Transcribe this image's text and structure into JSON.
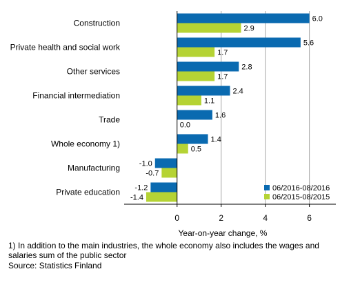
{
  "chart_data": {
    "type": "bar",
    "orientation": "horizontal",
    "categories": [
      "Construction",
      "Private health and social work",
      "Other services",
      "Financial intermediation",
      "Trade",
      "Whole economy 1)",
      "Manufacturing",
      "Private education"
    ],
    "series": [
      {
        "name": "06/2016-08/2016",
        "color": "#0a6ab0",
        "values": [
          6.0,
          5.6,
          2.8,
          2.4,
          1.6,
          1.4,
          -1.0,
          -1.2
        ],
        "labels": [
          "6.0",
          "5.6",
          "2.8",
          "2.4",
          "1.6",
          "1.4",
          "-1.0",
          "-1.2"
        ]
      },
      {
        "name": "06/2015-08/2015",
        "color": "#b5d334",
        "values": [
          2.9,
          1.7,
          1.7,
          1.1,
          0.0,
          0.5,
          -0.7,
          -1.4
        ],
        "labels": [
          "2.9",
          "1.7",
          "1.7",
          "1.1",
          "0.0",
          "0.5",
          "-0.7",
          "-1.4"
        ]
      }
    ],
    "xlabel": "Year-on-year change, %",
    "xlim": [
      -2.4,
      7.2
    ],
    "xticks": [
      0,
      2,
      4,
      6
    ],
    "grid": "vertical",
    "legend": "bottom-right"
  },
  "footnotes": {
    "note": "1) In addition to the main industries, the whole economy also includes the wages and salaries sum of the public sector",
    "source": "Source: Statistics Finland"
  }
}
